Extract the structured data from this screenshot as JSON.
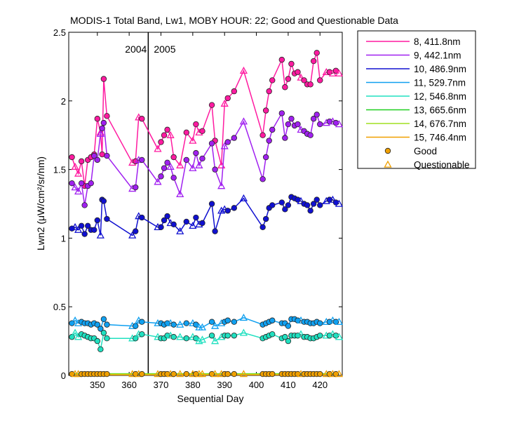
{
  "chart_data": {
    "type": "line",
    "title": "MODIS-1 Total Band, Lw1, MOBY HOUR: 22;  Good and Questionable Data",
    "xlabel": "Sequential Day",
    "ylabel": "Lwn2 (μW/cm²/sr/nm)",
    "xlim": [
      341,
      427
    ],
    "ylim": [
      0,
      2.5
    ],
    "xticks": [
      350,
      360,
      370,
      380,
      390,
      400,
      410,
      420
    ],
    "yticks": [
      0,
      0.5,
      1,
      1.5,
      2,
      2.5
    ],
    "year_divider": {
      "x": 366,
      "left_label": "2004",
      "right_label": "2005"
    },
    "legend_position": "outside-right-top",
    "legend": {
      "good_label": "Good",
      "questionable_label": "Questionable",
      "good_color": "#f0a000",
      "questionable_color": "#f0a000"
    },
    "series": [
      {
        "name": "8, 411.8nm",
        "color": "#ff1aa0",
        "x": [
          342,
          343,
          344,
          345,
          346,
          347,
          348,
          349,
          350,
          351,
          351.5,
          352,
          353,
          361,
          362,
          363,
          364,
          369,
          370,
          371,
          372,
          373,
          374,
          376,
          378,
          380,
          381,
          382,
          383,
          386,
          387,
          389,
          390,
          391,
          393,
          396,
          402,
          403,
          404,
          405,
          408,
          409,
          410,
          411,
          412,
          413,
          414,
          415,
          416,
          417,
          418,
          419,
          420,
          422,
          423,
          424,
          425,
          426
        ],
        "y": [
          1.59,
          1.52,
          1.47,
          1.56,
          1.38,
          1.57,
          1.59,
          1.61,
          1.87,
          1.77,
          1.61,
          2.16,
          1.89,
          1.55,
          1.56,
          1.88,
          1.87,
          1.65,
          1.7,
          1.75,
          1.79,
          1.75,
          1.59,
          1.53,
          1.77,
          1.71,
          1.83,
          1.77,
          1.78,
          1.97,
          1.71,
          1.53,
          1.98,
          2.02,
          2.07,
          2.22,
          1.75,
          1.93,
          2.07,
          2.15,
          2.3,
          2.1,
          2.16,
          2.27,
          2.2,
          2.21,
          2.17,
          2.15,
          2.12,
          2.12,
          2.29,
          2.35,
          2.15,
          2.21,
          2.21,
          2.2,
          2.22,
          2.2
        ],
        "q": [
          0,
          1,
          1,
          0,
          0,
          0,
          0,
          0,
          0,
          1,
          0,
          0,
          0,
          1,
          0,
          1,
          0,
          1,
          0,
          0,
          0,
          1,
          0,
          1,
          0,
          1,
          0,
          1,
          0,
          0,
          0,
          1,
          1,
          0,
          0,
          1,
          0,
          0,
          0,
          0,
          0,
          0,
          0,
          0,
          0,
          0,
          1,
          0,
          0,
          0,
          0,
          0,
          0,
          1,
          0,
          1,
          0,
          1
        ]
      },
      {
        "name": "9, 442.1nm",
        "color": "#a020f0",
        "x": [
          342,
          343,
          344,
          345,
          346,
          347,
          348,
          349,
          350,
          351,
          351.5,
          352,
          353,
          361,
          362,
          363,
          364,
          369,
          370,
          371,
          372,
          373,
          374,
          376,
          378,
          380,
          381,
          382,
          383,
          386,
          387,
          389,
          390,
          391,
          393,
          396,
          402,
          403,
          404,
          405,
          408,
          409,
          410,
          411,
          412,
          413,
          414,
          415,
          416,
          417,
          418,
          419,
          420,
          422,
          423,
          424,
          425,
          426
        ],
        "y": [
          1.4,
          1.37,
          1.34,
          1.4,
          1.24,
          1.38,
          1.4,
          1.6,
          1.57,
          1.76,
          1.8,
          1.84,
          1.6,
          1.36,
          1.37,
          1.57,
          1.57,
          1.41,
          1.45,
          1.51,
          1.55,
          1.52,
          1.44,
          1.32,
          1.57,
          1.51,
          1.62,
          1.53,
          1.58,
          1.69,
          1.5,
          1.38,
          1.67,
          1.7,
          1.73,
          1.85,
          1.43,
          1.59,
          1.71,
          1.79,
          1.91,
          1.73,
          1.83,
          1.87,
          1.82,
          1.83,
          1.79,
          1.78,
          1.76,
          1.75,
          1.87,
          1.9,
          1.83,
          1.84,
          1.85,
          1.85,
          1.84,
          1.83
        ],
        "q": [
          0,
          1,
          1,
          0,
          0,
          0,
          0,
          0,
          0,
          1,
          0,
          0,
          0,
          1,
          0,
          1,
          0,
          1,
          0,
          0,
          0,
          1,
          0,
          1,
          0,
          1,
          0,
          1,
          0,
          0,
          0,
          1,
          1,
          0,
          0,
          1,
          0,
          0,
          0,
          0,
          0,
          0,
          0,
          0,
          0,
          0,
          1,
          0,
          0,
          0,
          0,
          0,
          0,
          1,
          0,
          1,
          0,
          1
        ]
      },
      {
        "name": "10, 486.9nm",
        "color": "#1010d0",
        "x": [
          342,
          343,
          344,
          345,
          346,
          347,
          348,
          349,
          350,
          351,
          351.5,
          352,
          353,
          361,
          362,
          363,
          364,
          369,
          370,
          371,
          372,
          373,
          374,
          376,
          378,
          380,
          381,
          382,
          383,
          386,
          387,
          389,
          390,
          391,
          393,
          396,
          402,
          403,
          404,
          405,
          408,
          409,
          410,
          411,
          412,
          413,
          414,
          415,
          416,
          417,
          418,
          419,
          420,
          422,
          423,
          424,
          425,
          426
        ],
        "y": [
          1.07,
          1.08,
          1.06,
          1.09,
          1.03,
          1.09,
          1.06,
          1.06,
          1.13,
          1.02,
          1.28,
          1.27,
          1.14,
          1.02,
          1.05,
          1.16,
          1.15,
          1.08,
          1.08,
          1.13,
          1.16,
          1.11,
          1.1,
          1.05,
          1.12,
          1.09,
          1.15,
          1.1,
          1.11,
          1.25,
          1.05,
          1.2,
          1.21,
          1.2,
          1.22,
          1.29,
          1.08,
          1.14,
          1.22,
          1.24,
          1.26,
          1.21,
          1.24,
          1.3,
          1.29,
          1.28,
          1.27,
          1.25,
          1.24,
          1.2,
          1.25,
          1.28,
          1.24,
          1.27,
          1.28,
          1.28,
          1.26,
          1.25
        ],
        "q": [
          0,
          1,
          1,
          0,
          0,
          0,
          0,
          0,
          0,
          1,
          0,
          0,
          0,
          1,
          0,
          1,
          0,
          1,
          0,
          0,
          0,
          1,
          0,
          1,
          0,
          1,
          0,
          1,
          0,
          0,
          0,
          1,
          1,
          0,
          0,
          1,
          0,
          0,
          0,
          0,
          0,
          0,
          0,
          0,
          0,
          0,
          1,
          0,
          0,
          0,
          0,
          0,
          0,
          1,
          0,
          1,
          0,
          1
        ]
      },
      {
        "name": "11, 529.7nm",
        "color": "#10a0f0",
        "x": [
          342,
          343,
          344,
          345,
          346,
          347,
          348,
          349,
          350,
          351,
          352,
          353,
          361,
          362,
          363,
          364,
          369,
          370,
          371,
          372,
          373,
          374,
          376,
          378,
          380,
          381,
          382,
          383,
          386,
          387,
          389,
          390,
          391,
          393,
          396,
          402,
          403,
          404,
          405,
          408,
          409,
          410,
          411,
          412,
          413,
          414,
          415,
          416,
          417,
          418,
          419,
          420,
          422,
          423,
          424,
          425,
          426
        ],
        "y": [
          0.38,
          0.4,
          0.38,
          0.39,
          0.38,
          0.38,
          0.37,
          0.38,
          0.37,
          0.34,
          0.41,
          0.37,
          0.36,
          0.36,
          0.4,
          0.39,
          0.38,
          0.38,
          0.37,
          0.38,
          0.38,
          0.37,
          0.37,
          0.38,
          0.38,
          0.37,
          0.35,
          0.35,
          0.39,
          0.36,
          0.38,
          0.39,
          0.4,
          0.39,
          0.42,
          0.37,
          0.38,
          0.39,
          0.4,
          0.38,
          0.38,
          0.36,
          0.41,
          0.41,
          0.4,
          0.4,
          0.39,
          0.39,
          0.38,
          0.38,
          0.39,
          0.38,
          0.39,
          0.39,
          0.4,
          0.39,
          0.39
        ],
        "q": [
          0,
          1,
          1,
          0,
          0,
          0,
          0,
          0,
          0,
          0,
          0,
          0,
          1,
          0,
          1,
          0,
          1,
          0,
          0,
          0,
          1,
          0,
          1,
          0,
          1,
          0,
          1,
          1,
          0,
          1,
          1,
          0,
          0,
          0,
          1,
          0,
          0,
          0,
          0,
          0,
          0,
          0,
          0,
          0,
          0,
          1,
          0,
          0,
          0,
          0,
          0,
          0,
          1,
          0,
          1,
          0,
          1
        ]
      },
      {
        "name": "12, 546.8nm",
        "color": "#20e0c0",
        "x": [
          342,
          343,
          344,
          345,
          346,
          347,
          348,
          349,
          350,
          351,
          352,
          353,
          361,
          362,
          363,
          364,
          369,
          370,
          371,
          372,
          373,
          374,
          376,
          378,
          380,
          381,
          382,
          383,
          386,
          387,
          389,
          390,
          391,
          393,
          396,
          402,
          403,
          404,
          405,
          408,
          409,
          410,
          411,
          412,
          413,
          414,
          415,
          416,
          417,
          418,
          419,
          420,
          422,
          423,
          424,
          425,
          426
        ],
        "y": [
          0.28,
          0.31,
          0.28,
          0.3,
          0.29,
          0.28,
          0.27,
          0.27,
          0.25,
          0.19,
          0.31,
          0.27,
          0.27,
          0.27,
          0.3,
          0.3,
          0.28,
          0.27,
          0.27,
          0.29,
          0.29,
          0.28,
          0.28,
          0.27,
          0.28,
          0.27,
          0.25,
          0.26,
          0.29,
          0.25,
          0.28,
          0.29,
          0.29,
          0.29,
          0.31,
          0.27,
          0.28,
          0.29,
          0.3,
          0.27,
          0.28,
          0.25,
          0.29,
          0.29,
          0.29,
          0.3,
          0.28,
          0.28,
          0.27,
          0.27,
          0.28,
          0.29,
          0.29,
          0.29,
          0.3,
          0.29,
          0.28
        ],
        "q": [
          0,
          1,
          1,
          0,
          0,
          0,
          0,
          0,
          0,
          0,
          0,
          0,
          1,
          0,
          1,
          0,
          1,
          0,
          0,
          0,
          1,
          0,
          1,
          0,
          1,
          0,
          1,
          1,
          0,
          1,
          1,
          0,
          0,
          0,
          1,
          0,
          0,
          0,
          0,
          0,
          0,
          0,
          0,
          0,
          0,
          1,
          0,
          0,
          0,
          0,
          0,
          0,
          1,
          0,
          1,
          0,
          1
        ]
      },
      {
        "name": "13, 665.6nm",
        "color": "#20d020",
        "x": [
          342,
          426
        ],
        "y": [
          0.012,
          0.012
        ],
        "q": [],
        "markers": false
      },
      {
        "name": "14, 676.7nm",
        "color": "#a0e020",
        "x": [
          342,
          426
        ],
        "y": [
          0.01,
          0.01
        ],
        "q": [],
        "markers": false
      },
      {
        "name": "15, 746.4nm",
        "color": "#f0a000",
        "x": [
          342,
          426
        ],
        "y": [
          0.004,
          0.004
        ],
        "q": [],
        "markers": false
      },
      {
        "name": "",
        "color": "#f0a000",
        "x": [
          342,
          343,
          344,
          345,
          346,
          347,
          348,
          349,
          350,
          351,
          352,
          353,
          361,
          362,
          363,
          364,
          369,
          370,
          371,
          372,
          373,
          374,
          376,
          378,
          380,
          381,
          382,
          383,
          386,
          387,
          389,
          390,
          391,
          393,
          396,
          402,
          403,
          404,
          405,
          408,
          409,
          410,
          411,
          412,
          413,
          414,
          415,
          416,
          417,
          418,
          419,
          420,
          422,
          423,
          424,
          425,
          426
        ],
        "y": [
          0.01,
          0.01,
          0.01,
          0.01,
          0.01,
          0.01,
          0.01,
          0.01,
          0.01,
          0.01,
          0.01,
          0.01,
          0.01,
          0.01,
          0.01,
          0.01,
          0.01,
          0.01,
          0.01,
          0.01,
          0.01,
          0.01,
          0.01,
          0.01,
          0.01,
          0.01,
          0.01,
          0.01,
          0.01,
          0.01,
          0.01,
          0.01,
          0.01,
          0.01,
          0.01,
          0.01,
          0.01,
          0.01,
          0.01,
          0.01,
          0.01,
          0.01,
          0.01,
          0.01,
          0.01,
          0.01,
          0.01,
          0.01,
          0.01,
          0.01,
          0.01,
          0.01,
          0.01,
          0.01,
          0.01,
          0.01,
          0.01
        ],
        "q": [
          0,
          1,
          1,
          0,
          0,
          0,
          0,
          0,
          0,
          0,
          0,
          0,
          1,
          0,
          1,
          0,
          1,
          0,
          0,
          0,
          1,
          0,
          1,
          0,
          1,
          0,
          1,
          1,
          0,
          1,
          1,
          0,
          0,
          0,
          1,
          0,
          0,
          0,
          0,
          0,
          0,
          0,
          0,
          0,
          0,
          1,
          0,
          0,
          0,
          0,
          0,
          0,
          1,
          0,
          1,
          0,
          1
        ],
        "line": false
      }
    ]
  }
}
